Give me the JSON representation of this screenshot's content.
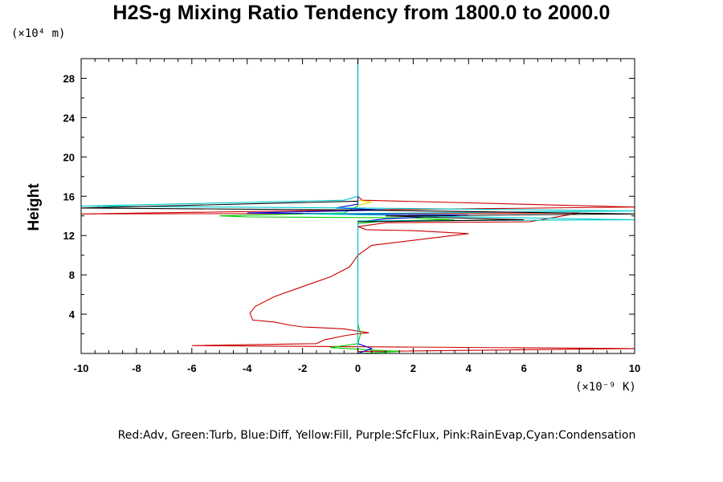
{
  "chart_data": {
    "type": "line",
    "title": "H2S-g Mixing Ratio Tendency from 1800.0 to 2000.0",
    "ylabel": "Height",
    "y_unit": "(×10⁴ m)",
    "x_unit": "(×10⁻⁹ K)",
    "legend_text": "Red:Adv, Green:Turb, Blue:Diff, Yellow:Fill, Purple:SfcFlux, Pink:RainEvap,Cyan:Condensation",
    "xlim": [
      -10,
      10
    ],
    "ylim": [
      0,
      30
    ],
    "x_ticks": [
      -10,
      -8,
      -6,
      -4,
      -2,
      0,
      2,
      4,
      6,
      8,
      10
    ],
    "y_ticks": [
      4,
      8,
      12,
      16,
      20,
      24,
      28
    ],
    "grid": false,
    "series": [
      {
        "name": "Adv",
        "color": "#cc0000",
        "points": [
          [
            0,
            30
          ],
          [
            0,
            16
          ],
          [
            0.15,
            15.6
          ],
          [
            10,
            14.9
          ],
          [
            0,
            14.6
          ],
          [
            -10,
            14.2
          ],
          [
            8,
            14.3
          ],
          [
            6.2,
            13.4
          ],
          [
            1,
            13.3
          ],
          [
            0,
            12.9
          ],
          [
            0.3,
            12.6
          ],
          [
            2,
            12.5
          ],
          [
            4,
            12.2
          ],
          [
            0.5,
            11
          ],
          [
            0,
            10
          ],
          [
            -0.3,
            8.8
          ],
          [
            -1,
            7.8
          ],
          [
            -2,
            6.8
          ],
          [
            -3,
            5.8
          ],
          [
            -3.7,
            4.8
          ],
          [
            -3.9,
            4.1
          ],
          [
            -3.8,
            3.4
          ],
          [
            -3,
            3.2
          ],
          [
            -2.5,
            2.9
          ],
          [
            -2,
            2.7
          ],
          [
            -1.2,
            2.6
          ],
          [
            -0.5,
            2.5
          ],
          [
            0.4,
            2.1
          ],
          [
            0,
            2
          ],
          [
            -0.5,
            1.8
          ],
          [
            -1.2,
            1.4
          ],
          [
            -1.5,
            1
          ],
          [
            -6,
            0.8
          ],
          [
            10,
            0.5
          ],
          [
            0,
            0.2
          ]
        ]
      },
      {
        "name": "Turb",
        "color": "#00cc00",
        "points": [
          [
            0,
            30
          ],
          [
            0,
            15
          ],
          [
            -0.5,
            14.3
          ],
          [
            -5,
            14
          ],
          [
            -4,
            13.9
          ],
          [
            2,
            13.8
          ],
          [
            3.5,
            13.6
          ],
          [
            1,
            13.5
          ],
          [
            0,
            13.2
          ],
          [
            0,
            5
          ],
          [
            0,
            3
          ],
          [
            0.1,
            2
          ],
          [
            0,
            1
          ],
          [
            -1,
            0.6
          ],
          [
            1.5,
            0.2
          ],
          [
            0,
            0
          ]
        ]
      },
      {
        "name": "Diff",
        "color": "#0000dd",
        "points": [
          [
            0,
            30
          ],
          [
            0,
            15.2
          ],
          [
            -0.8,
            14.8
          ],
          [
            1,
            14.6
          ],
          [
            -4,
            14.3
          ],
          [
            4,
            14.1
          ],
          [
            1,
            13.7
          ],
          [
            0,
            13.4
          ],
          [
            0,
            1
          ],
          [
            0.5,
            0.5
          ],
          [
            0,
            0
          ]
        ]
      },
      {
        "name": "Fill",
        "color": "#dddd00",
        "points": [
          [
            0,
            15.6
          ],
          [
            0.5,
            15.4
          ],
          [
            0,
            15.1
          ]
        ]
      },
      {
        "name": "Condensation",
        "color": "#00cccc",
        "points": [
          [
            0,
            30
          ],
          [
            0,
            16
          ],
          [
            -0.5,
            15.6
          ],
          [
            -10,
            15
          ],
          [
            0,
            14.8
          ],
          [
            10,
            14.5
          ],
          [
            -2,
            14.2
          ],
          [
            2,
            14
          ],
          [
            10,
            13.6
          ],
          [
            0,
            13.5
          ],
          [
            0,
            12
          ],
          [
            0,
            0
          ]
        ]
      },
      {
        "name": "Black",
        "color": "#000000",
        "points": [
          [
            0,
            15.5
          ],
          [
            -10,
            14.8
          ],
          [
            0,
            14.6
          ],
          [
            10,
            14.2
          ],
          [
            1,
            14
          ],
          [
            6,
            13.6
          ],
          [
            0,
            13.4
          ]
        ]
      }
    ]
  }
}
